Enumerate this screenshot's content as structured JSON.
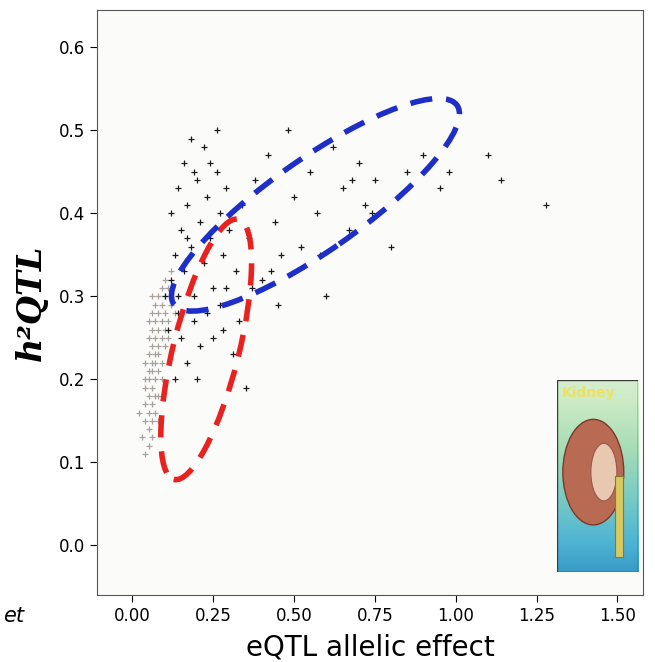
{
  "chart_data": {
    "type": "scatter",
    "x_label": "eQTL allelic effect",
    "y_label": "h²QTL",
    "annotations": [
      {
        "text": "Kidney"
      },
      {
        "text": "et"
      }
    ],
    "marker": "+",
    "xlim": [
      -0.11,
      1.58
    ],
    "ylim": [
      -0.06,
      0.645
    ],
    "xticks": [
      {
        "value": 0.0,
        "label": "0.00"
      },
      0.25,
      {
        "value": 0.5,
        "label": "0.50"
      },
      0.75,
      {
        "value": 1.0,
        "label": "1.00"
      },
      1.25,
      {
        "value": 1.5,
        "label": "1.50"
      }
    ],
    "yticks": [
      0.0,
      0.1,
      0.2,
      0.3,
      0.4,
      0.5,
      0.6
    ],
    "grid": false,
    "series": [
      {
        "color": "#a8a29c",
        "x": [
          0.04,
          0.05,
          0.06,
          0.05,
          0.04,
          0.06,
          0.05,
          0.07,
          0.04,
          0.06,
          0.05,
          0.07,
          0.08,
          0.04,
          0.06,
          0.05,
          0.07,
          0.09,
          0.05,
          0.06,
          0.08,
          0.04,
          0.06,
          0.07,
          0.09,
          0.05,
          0.07,
          0.08,
          0.06,
          0.08,
          0.1,
          0.05,
          0.07,
          0.09,
          0.06,
          0.08,
          0.1,
          0.07,
          0.09,
          0.11,
          0.06,
          0.08,
          0.1,
          0.07,
          0.09,
          0.12,
          0.08,
          0.1,
          0.09,
          0.11,
          0.1,
          0.12,
          0.03,
          0.04,
          0.05,
          0.06,
          0.11,
          0.13,
          0.02,
          0.08
        ],
        "values": [
          0.11,
          0.12,
          0.13,
          0.14,
          0.15,
          0.15,
          0.16,
          0.16,
          0.17,
          0.17,
          0.18,
          0.18,
          0.18,
          0.19,
          0.19,
          0.2,
          0.2,
          0.2,
          0.21,
          0.21,
          0.21,
          0.22,
          0.22,
          0.22,
          0.22,
          0.23,
          0.23,
          0.23,
          0.24,
          0.24,
          0.24,
          0.25,
          0.25,
          0.25,
          0.26,
          0.26,
          0.26,
          0.27,
          0.27,
          0.27,
          0.28,
          0.28,
          0.28,
          0.29,
          0.29,
          0.29,
          0.3,
          0.3,
          0.31,
          0.31,
          0.32,
          0.33,
          0.13,
          0.2,
          0.27,
          0.3,
          0.25,
          0.28,
          0.16,
          0.15
        ]
      },
      {
        "color": "#1a1a1a",
        "x": [
          0.1,
          0.12,
          0.13,
          0.14,
          0.15,
          0.16,
          0.17,
          0.18,
          0.19,
          0.2,
          0.21,
          0.22,
          0.23,
          0.24,
          0.25,
          0.26,
          0.27,
          0.28,
          0.29,
          0.3,
          0.12,
          0.14,
          0.16,
          0.18,
          0.15,
          0.17,
          0.19,
          0.21,
          0.23,
          0.13,
          0.11,
          0.2,
          0.25,
          0.27,
          0.29,
          0.32,
          0.34,
          0.36,
          0.38,
          0.4,
          0.42,
          0.44,
          0.46,
          0.48,
          0.5,
          0.52,
          0.55,
          0.57,
          0.6,
          0.62,
          0.65,
          0.67,
          0.7,
          0.72,
          0.75,
          0.8,
          0.85,
          0.9,
          0.95,
          0.98,
          1.1,
          1.14,
          1.28,
          0.35,
          0.33,
          0.31,
          0.45,
          0.22,
          0.24,
          0.26,
          0.19,
          0.17,
          0.14,
          0.28,
          0.37,
          0.43,
          0.58,
          0.68,
          0.74
        ],
        "values": [
          0.3,
          0.32,
          0.35,
          0.3,
          0.38,
          0.33,
          0.41,
          0.36,
          0.3,
          0.44,
          0.39,
          0.34,
          0.42,
          0.37,
          0.31,
          0.45,
          0.4,
          0.35,
          0.43,
          0.38,
          0.4,
          0.43,
          0.46,
          0.49,
          0.25,
          0.22,
          0.27,
          0.24,
          0.28,
          0.2,
          0.26,
          0.2,
          0.25,
          0.29,
          0.31,
          0.33,
          0.41,
          0.37,
          0.44,
          0.32,
          0.47,
          0.39,
          0.35,
          0.5,
          0.42,
          0.36,
          0.45,
          0.4,
          0.3,
          0.48,
          0.43,
          0.38,
          0.46,
          0.41,
          0.44,
          0.36,
          0.45,
          0.47,
          0.43,
          0.45,
          0.47,
          0.44,
          0.41,
          0.19,
          0.27,
          0.23,
          0.29,
          0.48,
          0.46,
          0.5,
          0.45,
          0.37,
          0.28,
          0.26,
          0.31,
          0.33,
          0.35,
          0.44,
          0.4
        ]
      }
    ]
  }
}
